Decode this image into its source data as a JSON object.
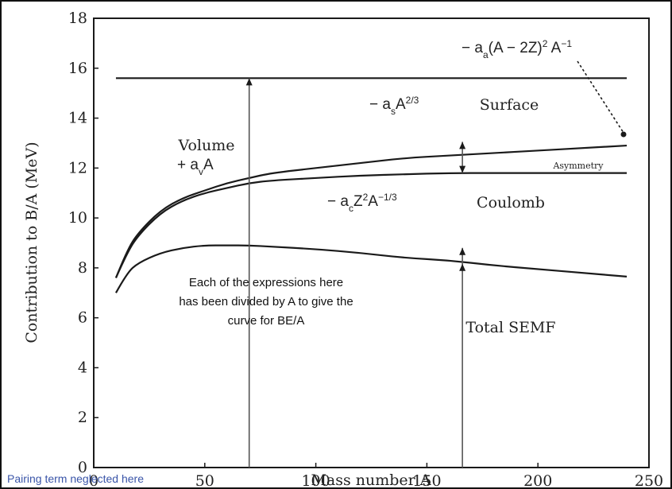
{
  "chart_data": {
    "type": "line",
    "xlabel": "Mass number A",
    "ylabel": "Contribution to B/A (MeV)",
    "xlim": [
      0,
      250
    ],
    "ylim": [
      0,
      18
    ],
    "x_ticks": [
      "0",
      "50",
      "100",
      "150",
      "200",
      "250"
    ],
    "y_ticks": [
      "0",
      "2",
      "4",
      "6",
      "8",
      "10",
      "12",
      "14",
      "16",
      "18"
    ],
    "grid": false,
    "series": [
      {
        "key": "volume",
        "x": [
          10,
          240
        ],
        "y": [
          15.6,
          15.6
        ]
      },
      {
        "key": "after_surface",
        "x": [
          10,
          15,
          20,
          30,
          40,
          50,
          60,
          70,
          80,
          100,
          120,
          140,
          160,
          180,
          200,
          220,
          240
        ],
        "y": [
          7.6,
          8.7,
          9.4,
          10.3,
          10.8,
          11.1,
          11.4,
          11.6,
          11.8,
          12.0,
          12.2,
          12.4,
          12.5,
          12.6,
          12.7,
          12.8,
          12.9
        ]
      },
      {
        "key": "after_asymmetry",
        "x": [
          10,
          15,
          20,
          30,
          40,
          50,
          60,
          70,
          80,
          100,
          120,
          140,
          160,
          180,
          200,
          220,
          240
        ],
        "y": [
          7.6,
          8.6,
          9.3,
          10.2,
          10.7,
          11.0,
          11.2,
          11.4,
          11.5,
          11.6,
          11.7,
          11.75,
          11.8,
          11.8,
          11.8,
          11.8,
          11.8
        ]
      },
      {
        "key": "total_semf",
        "x": [
          10,
          15,
          20,
          30,
          40,
          50,
          60,
          70,
          80,
          100,
          120,
          140,
          160,
          180,
          200,
          220,
          240
        ],
        "y": [
          7.0,
          7.8,
          8.2,
          8.6,
          8.8,
          8.9,
          8.9,
          8.9,
          8.85,
          8.75,
          8.6,
          8.4,
          8.3,
          8.1,
          7.95,
          7.8,
          7.65
        ]
      }
    ],
    "region_labels": {
      "volume": "Volume",
      "surface": "Surface",
      "asymmetry": "Asymmetry",
      "coulomb": "Coulomb",
      "total": "Total SEMF"
    },
    "formulas": {
      "volume": "+ a",
      "volume_sub": "v",
      "volume_tail": "A",
      "surface": "− a",
      "surface_sub": "s",
      "surface_tail": "A",
      "surface_exp": "2/3",
      "coulomb": "− a",
      "coulomb_sub": "c",
      "coulomb_tail": "Z",
      "coulomb_exp1": "2",
      "coulomb_mid": "A",
      "coulomb_exp2": "−1/3",
      "asym": "− a",
      "asym_sub": "a",
      "asym_mid": "(A − 2Z)",
      "asym_exp1": "2",
      "asym_tail": " A",
      "asym_exp2": "−1"
    },
    "annotations": {
      "note": [
        "Each of the expressions here",
        "has been divided by A to give the",
        "curve for BE/A"
      ],
      "pairing": "Pairing term neglected here"
    },
    "arrows": [
      {
        "x": 70,
        "y_from": 0,
        "y_to": 15.6
      },
      {
        "x": 166,
        "y_from": 11.8,
        "y_to": 13.05
      },
      {
        "x": 166,
        "y_from": 0,
        "y_to": 8.8
      }
    ]
  }
}
